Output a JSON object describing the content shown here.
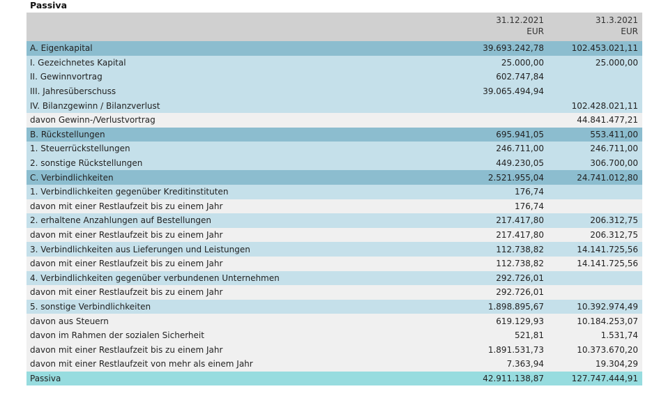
{
  "title": "Passiva",
  "header": {
    "col1": [
      "31.12.2021",
      "EUR"
    ],
    "col2": [
      "31.3.2021",
      "EUR"
    ]
  },
  "rows": [
    {
      "type": "section",
      "label": "A. Eigenkapital",
      "v1": "39.693.242,78",
      "v2": "102.453.021,11"
    },
    {
      "type": "item",
      "label": "I. Gezeichnetes Kapital",
      "v1": "25.000,00",
      "v2": "25.000,00"
    },
    {
      "type": "item",
      "label": "II. Gewinnvortrag",
      "v1": "602.747,84",
      "v2": ""
    },
    {
      "type": "item",
      "label": "III. Jahresüberschuss",
      "v1": "39.065.494,94",
      "v2": ""
    },
    {
      "type": "item",
      "label": "IV. Bilanzgewinn / Bilanzverlust",
      "v1": "",
      "v2": "102.428.021,11"
    },
    {
      "type": "sub",
      "label": "davon Gewinn-/Verlustvortrag",
      "v1": "",
      "v2": "44.841.477,21"
    },
    {
      "type": "section",
      "label": "B. Rückstellungen",
      "v1": "695.941,05",
      "v2": "553.411,00"
    },
    {
      "type": "item",
      "label": "1. Steuerrückstellungen",
      "v1": "246.711,00",
      "v2": "246.711,00"
    },
    {
      "type": "item",
      "label": "2. sonstige Rückstellungen",
      "v1": "449.230,05",
      "v2": "306.700,00"
    },
    {
      "type": "section",
      "label": "C. Verbindlichkeiten",
      "v1": "2.521.955,04",
      "v2": "24.741.012,80"
    },
    {
      "type": "item",
      "label": "1. Verbindlichkeiten gegenüber Kreditinstituten",
      "v1": "176,74",
      "v2": ""
    },
    {
      "type": "sub",
      "label": "davon mit einer Restlaufzeit bis zu einem Jahr",
      "v1": "176,74",
      "v2": ""
    },
    {
      "type": "item",
      "label": "2. erhaltene Anzahlungen auf Bestellungen",
      "v1": "217.417,80",
      "v2": "206.312,75"
    },
    {
      "type": "sub",
      "label": "davon mit einer Restlaufzeit bis zu einem Jahr",
      "v1": "217.417,80",
      "v2": "206.312,75"
    },
    {
      "type": "item",
      "label": "3. Verbindlichkeiten aus Lieferungen und Leistungen",
      "v1": "112.738,82",
      "v2": "14.141.725,56"
    },
    {
      "type": "sub",
      "label": "davon mit einer Restlaufzeit bis zu einem Jahr",
      "v1": "112.738,82",
      "v2": "14.141.725,56"
    },
    {
      "type": "item",
      "label": "4. Verbindlichkeiten gegenüber verbundenen Unternehmen",
      "v1": "292.726,01",
      "v2": ""
    },
    {
      "type": "sub",
      "label": "davon mit einer Restlaufzeit bis zu einem Jahr",
      "v1": "292.726,01",
      "v2": ""
    },
    {
      "type": "item",
      "label": "5. sonstige Verbindlichkeiten",
      "v1": "1.898.895,67",
      "v2": "10.392.974,49"
    },
    {
      "type": "sub",
      "label": "davon aus Steuern",
      "v1": "619.129,93",
      "v2": "10.184.253,07"
    },
    {
      "type": "sub",
      "label": "davon im Rahmen der sozialen Sicherheit",
      "v1": "521,81",
      "v2": "1.531,74"
    },
    {
      "type": "sub",
      "label": "davon mit einer Restlaufzeit bis zu einem Jahr",
      "v1": "1.891.531,73",
      "v2": "10.373.670,20"
    },
    {
      "type": "sub",
      "label": "davon mit einer Restlaufzeit von mehr als einem Jahr",
      "v1": "7.363,94",
      "v2": "19.304,29"
    },
    {
      "type": "total",
      "label": "Passiva",
      "v1": "42.911.138,87",
      "v2": "127.747.444,91"
    }
  ]
}
